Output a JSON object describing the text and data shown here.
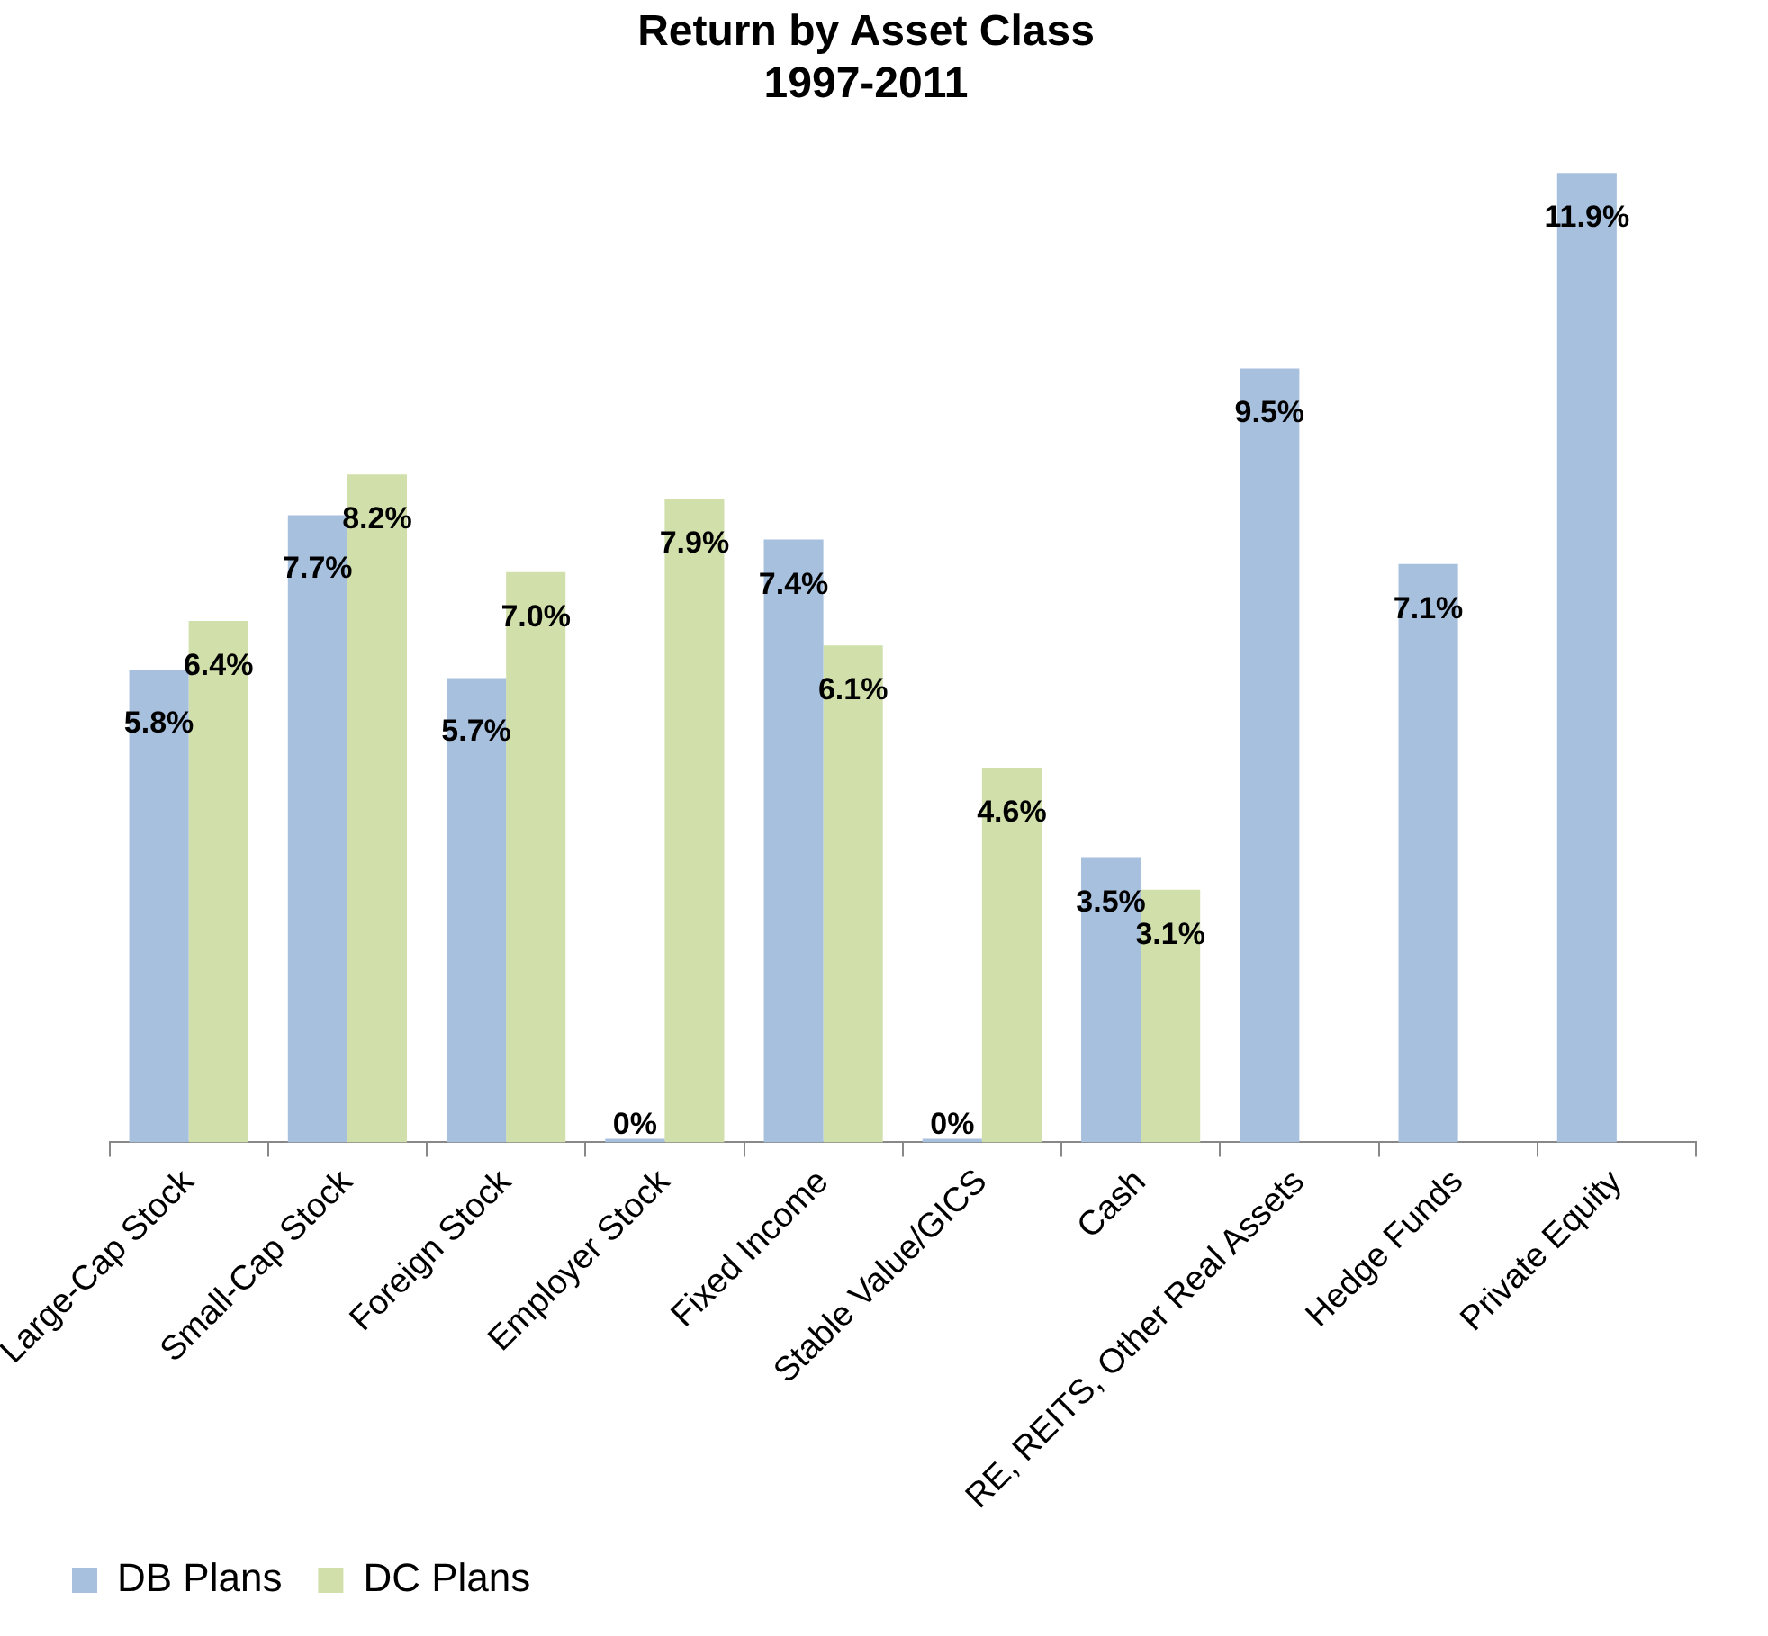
{
  "chart_data": {
    "type": "bar",
    "title": "Return by Asset Class",
    "subtitle": "1997-2011",
    "categories": [
      "Large-Cap Stock",
      "Small-Cap Stock",
      "Foreign Stock",
      "Employer Stock",
      "Fixed Income",
      "Stable Value/GICS",
      "Cash",
      "RE, REITS, Other Real Assets",
      "Hedge Funds",
      "Private Equity"
    ],
    "series": [
      {
        "name": "DB Plans",
        "color": "#a7c0de",
        "values": [
          5.8,
          7.7,
          5.7,
          0,
          7.4,
          0,
          3.5,
          9.5,
          7.1,
          11.9
        ],
        "value_labels": [
          "5.8%",
          "7.7%",
          "5.7%",
          "0%",
          "7.4%",
          "0%",
          "3.5%",
          "9.5%",
          "7.1%",
          "11.9%"
        ]
      },
      {
        "name": "DC Plans",
        "color": "#d1dfaa",
        "values": [
          6.4,
          8.2,
          7.0,
          7.9,
          6.1,
          4.6,
          3.1,
          null,
          null,
          null
        ],
        "value_labels": [
          "6.4%",
          "8.2%",
          "7.0%",
          "7.9%",
          "6.1%",
          "4.6%",
          "3.1%",
          null,
          null,
          null
        ]
      }
    ],
    "legend": "bottom left",
    "grid": false
  }
}
